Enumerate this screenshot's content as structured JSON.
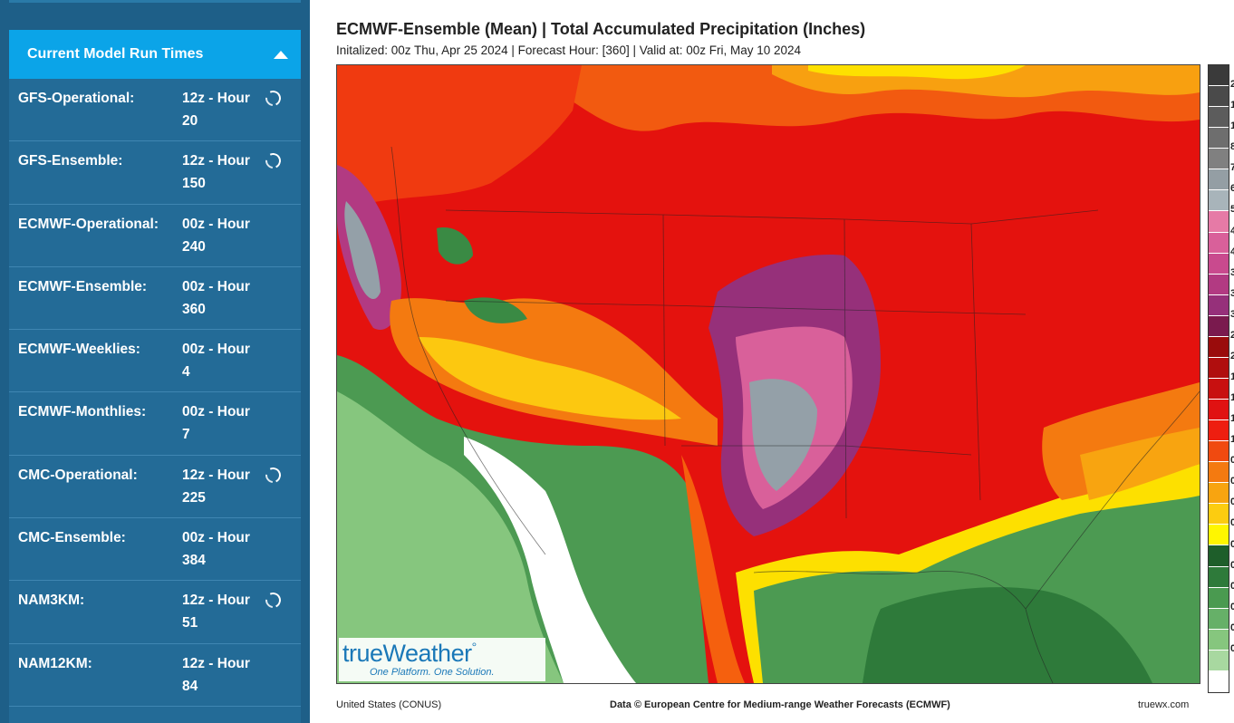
{
  "sidebar": {
    "header": "Current Model Run Times",
    "rows": [
      {
        "name": "GFS-Operational:",
        "time": "12z - Hour",
        "hour": "20",
        "loading": true
      },
      {
        "name": "GFS-Ensemble:",
        "time": "12z - Hour",
        "hour": "150",
        "loading": true
      },
      {
        "name": "ECMWF-Operational:",
        "time": "00z - Hour",
        "hour": "240",
        "loading": false
      },
      {
        "name": "ECMWF-Ensemble:",
        "time": "00z - Hour",
        "hour": "360",
        "loading": false
      },
      {
        "name": "ECMWF-Weeklies:",
        "time": "00z - Hour",
        "hour": "4",
        "loading": false
      },
      {
        "name": "ECMWF-Monthlies:",
        "time": "00z - Hour",
        "hour": "7",
        "loading": false
      },
      {
        "name": "CMC-Operational:",
        "time": "12z - Hour",
        "hour": "225",
        "loading": true
      },
      {
        "name": "CMC-Ensemble:",
        "time": "00z - Hour",
        "hour": "384",
        "loading": false
      },
      {
        "name": "NAM3KM:",
        "time": "12z - Hour",
        "hour": "51",
        "loading": true
      },
      {
        "name": "NAM12KM:",
        "time": "12z - Hour",
        "hour": "84",
        "loading": false
      }
    ]
  },
  "map": {
    "title": "ECMWF-Ensemble (Mean)  | Total Accumulated Precipitation (Inches)",
    "subtitle": "Initalized: 00z Thu, Apr 25 2024  |  Forecast Hour: [360]  |  Valid at: 00z Fri, May 10 2024",
    "logo_brand_a": "true",
    "logo_brand_b": "Weather",
    "logo_tagline": "One Platform. One Solution.",
    "footer_left": "United States (CONUS)",
    "footer_center": "Data © European Centre for Medium-range Weather Forecasts (ECMWF)",
    "footer_right": "truewx.com",
    "colorbar_colors": [
      "#3a3a3a",
      "#4a4a4a",
      "#5c5c5c",
      "#6e6e6e",
      "#808080",
      "#949ea4",
      "#a8b4ba",
      "#e67aa6",
      "#d9609a",
      "#c94a8e",
      "#b23a82",
      "#96307a",
      "#7a1a4e",
      "#9a0c0c",
      "#b00e0e",
      "#c81010",
      "#e01212",
      "#ee1e10",
      "#f04a10",
      "#f47a10",
      "#f8a410",
      "#fccc10",
      "#fff600",
      "#1e5e2a",
      "#2e7a3a",
      "#4a9a50",
      "#66b068",
      "#86c67e",
      "#a8d8a0",
      "#ffffff"
    ],
    "colorbar_labels": [
      "2",
      "1",
      "1",
      "8",
      "7",
      "6",
      "5",
      "4",
      "4",
      "3",
      "3",
      "3",
      "2",
      "2",
      "1",
      "1",
      "1",
      "1",
      "0",
      "0",
      "0",
      "0",
      "0",
      "0",
      "0",
      "0",
      "0",
      "0",
      ""
    ]
  }
}
